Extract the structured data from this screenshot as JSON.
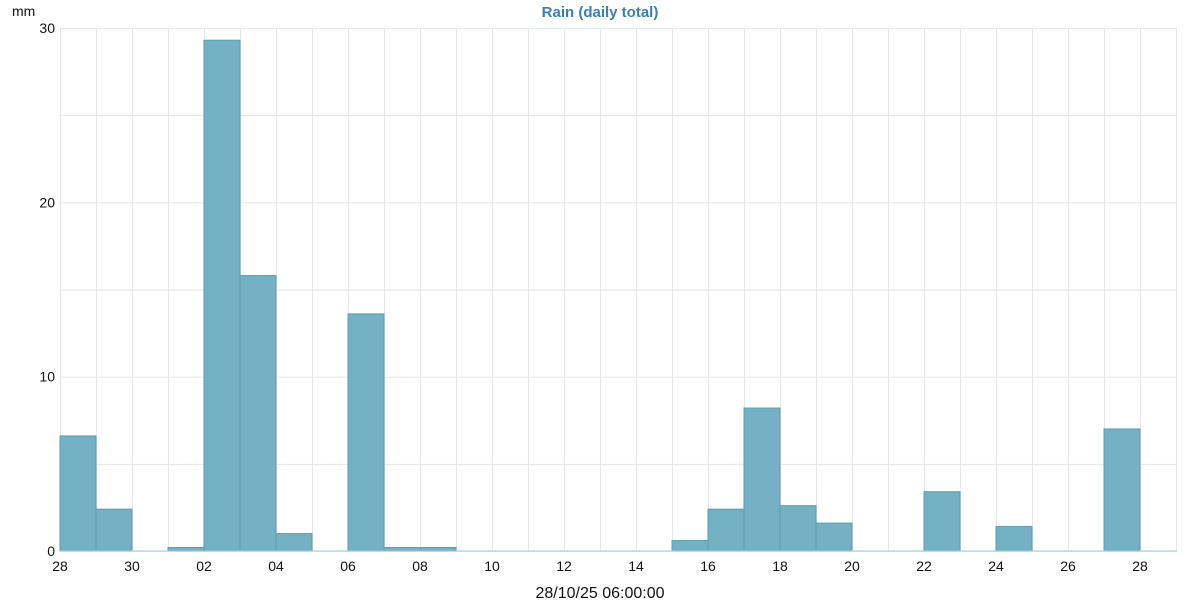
{
  "chart_data": {
    "type": "bar",
    "title": "Rain (daily total)",
    "ylabel": "mm",
    "xlabel": "28/10/25 06:00:00",
    "ylim": [
      0,
      30
    ],
    "yticks": [
      0,
      10,
      20,
      30
    ],
    "x_tick_labels": [
      "28",
      "30",
      "02",
      "04",
      "06",
      "08",
      "10",
      "12",
      "14",
      "16",
      "18",
      "20",
      "22",
      "24",
      "26",
      "28"
    ],
    "categories": [
      "28",
      "29",
      "30",
      "31",
      "01",
      "02",
      "03",
      "04",
      "05",
      "06",
      "07",
      "08",
      "09",
      "10",
      "11",
      "12",
      "13",
      "14",
      "15",
      "16",
      "17",
      "18",
      "19",
      "20",
      "21",
      "22",
      "23",
      "24",
      "25",
      "26",
      "27"
    ],
    "values": [
      6.6,
      2.4,
      0,
      0.2,
      29.3,
      15.8,
      1.0,
      0,
      13.6,
      0.2,
      0.2,
      0,
      0,
      0,
      0,
      0,
      0,
      0.6,
      2.4,
      8.2,
      2.6,
      1.6,
      0,
      0,
      3.4,
      0,
      1.4,
      0,
      0,
      7.0,
      0
    ],
    "grid": true,
    "colors": {
      "bar": "#74b1c4",
      "bar_edge": "#5e9cb1",
      "title": "#3a7fb0",
      "grid": "#e3e6ea"
    }
  }
}
